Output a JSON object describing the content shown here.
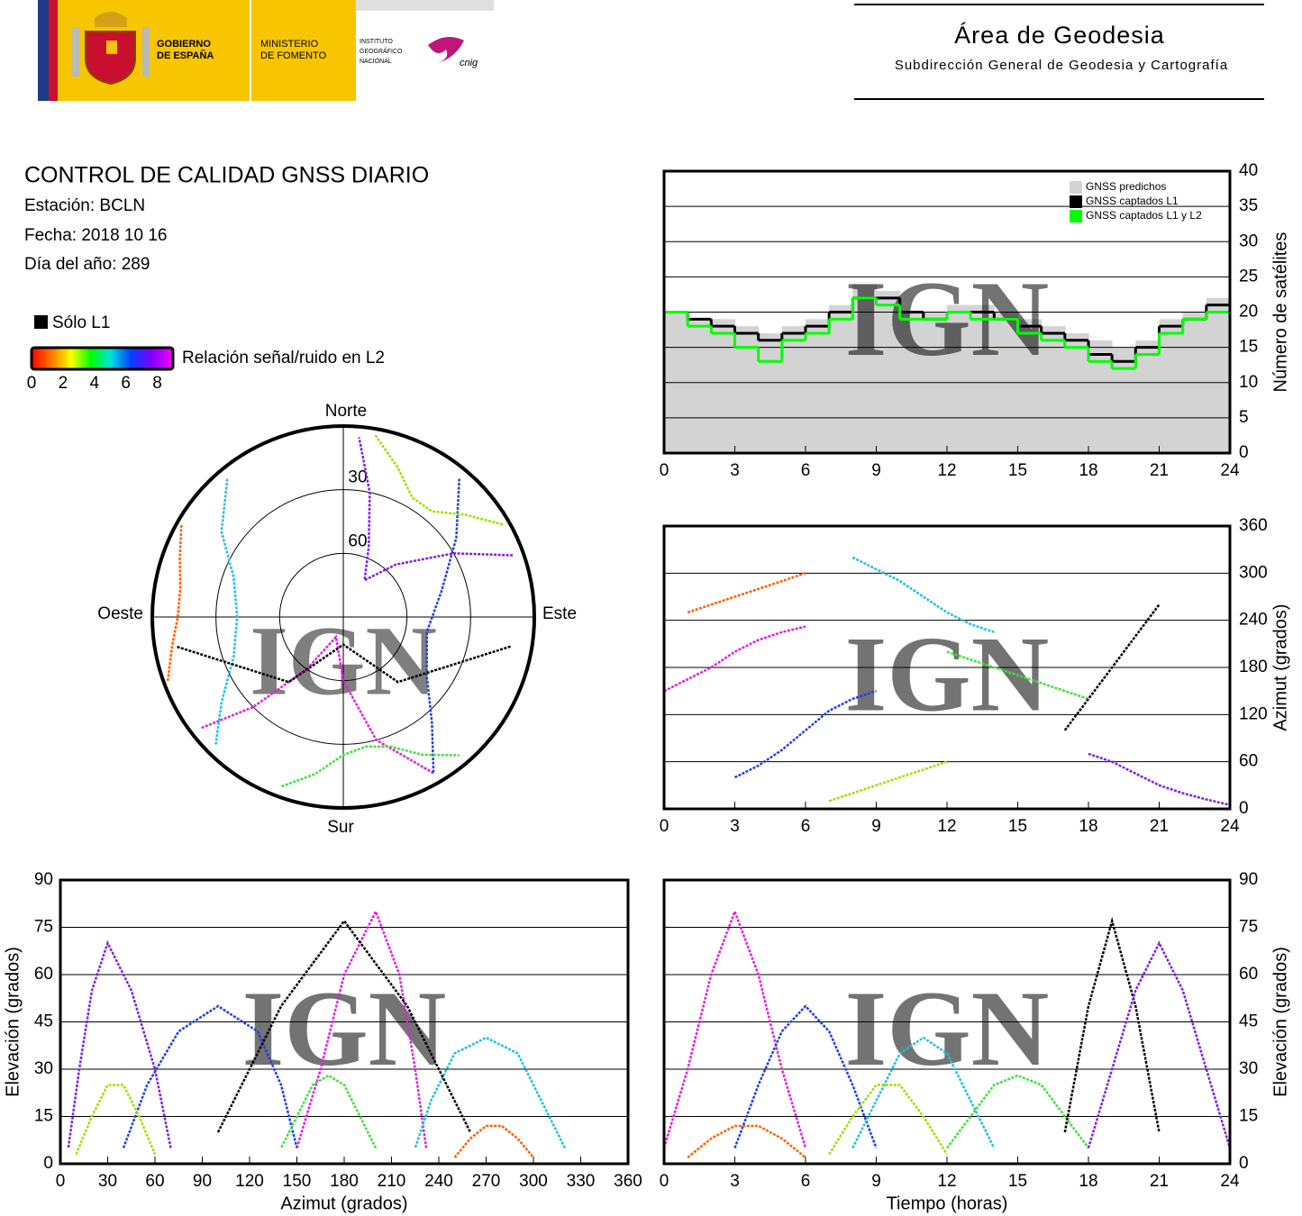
{
  "header": {
    "gobierno": [
      "GOBIERNO",
      "DE ESPAÑA"
    ],
    "ministerio": [
      "MINISTERIO",
      "DE FOMENTO"
    ],
    "instituto": [
      "INSTITUTO",
      "GEOGRÁFICO",
      "NACIONAL"
    ],
    "cnig": "cnig",
    "area": "Área de Geodesia",
    "subdireccion": "Subdirección General de Geodesia y Cartografía"
  },
  "report": {
    "title": "CONTROL DE CALIDAD GNSS DIARIO",
    "station": "Estación: BCLN",
    "date": "Fecha: 2018 10 16",
    "day_of_year": "Día del año: 289"
  },
  "legend": {
    "only_l1": "Sólo L1",
    "snr_label": "Relación señal/ruido en L2",
    "snr_range": [
      0,
      9
    ],
    "snr_ticks": [
      0,
      2,
      4,
      6,
      8
    ]
  },
  "chart_data": [
    {
      "type": "step",
      "ylabel": "Número de satélites",
      "watermark": "IGN",
      "xlim": [
        0,
        24
      ],
      "xticks": [
        0,
        3,
        6,
        9,
        12,
        15,
        18,
        21,
        24
      ],
      "ylim": [
        0,
        40
      ],
      "yticks": [
        0,
        5,
        10,
        15,
        20,
        25,
        30,
        35,
        40
      ],
      "y_axis": "right",
      "grid": true,
      "legend_position": "upper right",
      "x": [
        0,
        1,
        2,
        3,
        4,
        5,
        6,
        7,
        8,
        9,
        10,
        11,
        12,
        13,
        14,
        15,
        16,
        17,
        18,
        19,
        20,
        21,
        22,
        23
      ],
      "series": [
        {
          "name": "GNSS predichos",
          "color": "#d3d3d3",
          "values": [
            20,
            19,
            19,
            18,
            17,
            18,
            19,
            21,
            24,
            23,
            20,
            20,
            21,
            21,
            20,
            19,
            18,
            17,
            16,
            15,
            16,
            19,
            20,
            22
          ]
        },
        {
          "name": "GNSS captados L1",
          "color": "#000000",
          "values": [
            20,
            19,
            18,
            17,
            16,
            17,
            18,
            20,
            22,
            22,
            20,
            19,
            20,
            20,
            19,
            18,
            17,
            16,
            14,
            13,
            15,
            18,
            19,
            21
          ]
        },
        {
          "name": "GNSS captados L1 y L2",
          "color": "#00ff00",
          "values": [
            20,
            18,
            17,
            15,
            13,
            16,
            17,
            19,
            22,
            21,
            19,
            19,
            20,
            19,
            19,
            17,
            16,
            15,
            13,
            12,
            14,
            17,
            19,
            20
          ]
        }
      ]
    },
    {
      "type": "track",
      "ylabel": "Azimut (grados)",
      "watermark": "IGN",
      "xlim": [
        0,
        24
      ],
      "xticks": [
        0,
        3,
        6,
        9,
        12,
        15,
        18,
        21,
        24
      ],
      "ylim": [
        0,
        360
      ],
      "yticks": [
        0,
        60,
        120,
        180,
        240,
        300,
        360
      ],
      "y_axis": "right",
      "grid": true,
      "series": [
        {
          "color": "#e020e0",
          "x": [
            0,
            1,
            2,
            3,
            4,
            5,
            6
          ],
          "values": [
            150,
            165,
            180,
            200,
            215,
            225,
            232
          ]
        },
        {
          "color": "#2040e0",
          "x": [
            3,
            4,
            5,
            6,
            7,
            8,
            9
          ],
          "values": [
            40,
            55,
            75,
            100,
            125,
            140,
            150
          ]
        },
        {
          "color": "#20c0e0",
          "x": [
            8,
            9,
            10,
            11,
            12,
            13,
            14
          ],
          "values": [
            320,
            305,
            290,
            270,
            250,
            235,
            225
          ]
        },
        {
          "color": "#40e040",
          "x": [
            12,
            13,
            14,
            15,
            16,
            17,
            18
          ],
          "values": [
            200,
            190,
            180,
            170,
            160,
            150,
            140
          ]
        },
        {
          "color": "#000000",
          "x": [
            17,
            18,
            19,
            20,
            21
          ],
          "values": [
            100,
            140,
            180,
            220,
            260
          ]
        },
        {
          "color": "#8020e0",
          "x": [
            18,
            19,
            20,
            21,
            22,
            23,
            24
          ],
          "values": [
            70,
            60,
            45,
            30,
            20,
            12,
            5
          ]
        },
        {
          "color": "#ff6000",
          "x": [
            1,
            2,
            3,
            4,
            5,
            6
          ],
          "values": [
            250,
            260,
            270,
            280,
            290,
            300
          ]
        },
        {
          "color": "#a0e000",
          "x": [
            7,
            8,
            9,
            10,
            11,
            12
          ],
          "values": [
            10,
            20,
            30,
            40,
            50,
            60
          ]
        }
      ]
    },
    {
      "type": "polar",
      "watermark": "IGN",
      "north": "Norte",
      "south": "Sur",
      "east": "Este",
      "west": "Oeste",
      "rings": [
        30,
        60
      ],
      "series": [
        {
          "color": "#e020e0",
          "azimuth": [
            150,
            165,
            180,
            200,
            215,
            225,
            232
          ],
          "values": [
            5,
            30,
            60,
            80,
            60,
            30,
            5
          ]
        },
        {
          "color": "#2040e0",
          "azimuth": [
            40,
            55,
            75,
            100,
            125,
            140,
            150
          ],
          "values": [
            5,
            25,
            42,
            50,
            42,
            25,
            5
          ]
        },
        {
          "color": "#20c0e0",
          "azimuth": [
            320,
            305,
            290,
            270,
            250,
            235,
            225
          ],
          "values": [
            5,
            20,
            35,
            40,
            35,
            20,
            5
          ]
        },
        {
          "color": "#40e040",
          "azimuth": [
            200,
            190,
            180,
            170,
            160,
            150,
            140
          ],
          "values": [
            5,
            15,
            25,
            28,
            25,
            15,
            5
          ]
        },
        {
          "color": "#000000",
          "azimuth": [
            100,
            140,
            180,
            220,
            260
          ],
          "values": [
            10,
            50,
            77,
            50,
            10
          ]
        },
        {
          "color": "#8020e0",
          "azimuth": [
            70,
            60,
            45,
            30,
            20,
            12,
            5
          ],
          "values": [
            5,
            30,
            55,
            70,
            55,
            30,
            5
          ]
        },
        {
          "color": "#ff6000",
          "azimuth": [
            250,
            260,
            270,
            280,
            290,
            300
          ],
          "values": [
            2,
            8,
            12,
            12,
            8,
            2
          ]
        },
        {
          "color": "#a0e000",
          "azimuth": [
            10,
            20,
            30,
            40,
            50,
            60
          ],
          "values": [
            3,
            15,
            25,
            25,
            15,
            3
          ]
        }
      ]
    },
    {
      "type": "track",
      "xlabel": "Azimut (grados)",
      "ylabel": "Elevación (grados)",
      "watermark": "IGN",
      "xlim": [
        0,
        360
      ],
      "xticks": [
        0,
        30,
        60,
        90,
        120,
        150,
        180,
        210,
        240,
        270,
        300,
        330,
        360
      ],
      "ylim": [
        0,
        90
      ],
      "yticks": [
        0,
        15,
        30,
        45,
        60,
        75,
        90
      ],
      "y_axis": "left",
      "grid": true,
      "series": [
        {
          "color": "#e020e0",
          "x": [
            150,
            165,
            180,
            200,
            215,
            225,
            232
          ],
          "values": [
            5,
            30,
            60,
            80,
            60,
            30,
            5
          ]
        },
        {
          "color": "#2040e0",
          "x": [
            40,
            55,
            75,
            100,
            125,
            140,
            150
          ],
          "values": [
            5,
            25,
            42,
            50,
            42,
            25,
            5
          ]
        },
        {
          "color": "#20c0e0",
          "x": [
            320,
            305,
            290,
            270,
            250,
            235,
            225
          ],
          "values": [
            5,
            20,
            35,
            40,
            35,
            20,
            5
          ]
        },
        {
          "color": "#40e040",
          "x": [
            200,
            190,
            180,
            170,
            160,
            150,
            140
          ],
          "values": [
            5,
            15,
            25,
            28,
            25,
            15,
            5
          ]
        },
        {
          "color": "#000000",
          "x": [
            100,
            140,
            180,
            220,
            260
          ],
          "values": [
            10,
            50,
            77,
            50,
            10
          ]
        },
        {
          "color": "#8020e0",
          "x": [
            70,
            60,
            45,
            30,
            20,
            12,
            5
          ],
          "values": [
            5,
            30,
            55,
            70,
            55,
            30,
            5
          ]
        },
        {
          "color": "#ff6000",
          "x": [
            250,
            260,
            270,
            280,
            290,
            300
          ],
          "values": [
            2,
            8,
            12,
            12,
            8,
            2
          ]
        },
        {
          "color": "#a0e000",
          "x": [
            10,
            20,
            30,
            40,
            50,
            60
          ],
          "values": [
            3,
            15,
            25,
            25,
            15,
            3
          ]
        }
      ]
    },
    {
      "type": "track",
      "xlabel": "Tiempo (horas)",
      "ylabel": "Elevación (grados)",
      "watermark": "IGN",
      "xlim": [
        0,
        24
      ],
      "xticks": [
        0,
        3,
        6,
        9,
        12,
        15,
        18,
        21,
        24
      ],
      "ylim": [
        0,
        90
      ],
      "yticks": [
        0,
        15,
        30,
        45,
        60,
        75,
        90
      ],
      "y_axis": "right",
      "grid": true,
      "series": [
        {
          "color": "#e020e0",
          "x": [
            0,
            1,
            2,
            3,
            4,
            5,
            6
          ],
          "values": [
            5,
            30,
            60,
            80,
            60,
            30,
            5
          ]
        },
        {
          "color": "#2040e0",
          "x": [
            3,
            4,
            5,
            6,
            7,
            8,
            9
          ],
          "values": [
            5,
            25,
            42,
            50,
            42,
            25,
            5
          ]
        },
        {
          "color": "#20c0e0",
          "x": [
            8,
            9,
            10,
            11,
            12,
            13,
            14
          ],
          "values": [
            5,
            20,
            35,
            40,
            35,
            20,
            5
          ]
        },
        {
          "color": "#40e040",
          "x": [
            12,
            13,
            14,
            15,
            16,
            17,
            18
          ],
          "values": [
            5,
            15,
            25,
            28,
            25,
            15,
            5
          ]
        },
        {
          "color": "#000000",
          "x": [
            17,
            18,
            19,
            20,
            21
          ],
          "values": [
            10,
            50,
            77,
            50,
            10
          ]
        },
        {
          "color": "#8020e0",
          "x": [
            18,
            19,
            20,
            21,
            22,
            23,
            24
          ],
          "values": [
            5,
            30,
            55,
            70,
            55,
            30,
            5
          ]
        },
        {
          "color": "#ff6000",
          "x": [
            1,
            2,
            3,
            4,
            5,
            6
          ],
          "values": [
            2,
            8,
            12,
            12,
            8,
            2
          ]
        },
        {
          "color": "#a0e000",
          "x": [
            7,
            8,
            9,
            10,
            11,
            12
          ],
          "values": [
            3,
            15,
            25,
            25,
            15,
            3
          ]
        }
      ]
    }
  ]
}
